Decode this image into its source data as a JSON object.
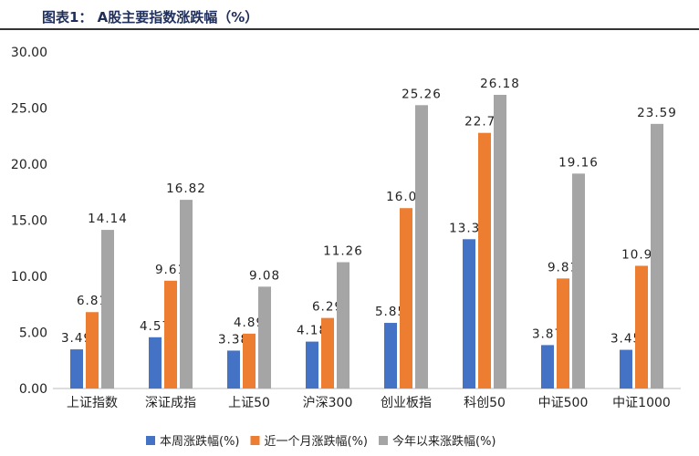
{
  "chart_data": {
    "type": "bar",
    "title": "图表1： A股主要指数涨跌幅（%）",
    "categories": [
      "上证指数",
      "深证成指",
      "上证50",
      "沪深300",
      "创业板指",
      "科创50",
      "中证500",
      "中证1000"
    ],
    "series": [
      {
        "name": "本周涨跌幅(%)",
        "color": "#4472c4",
        "values": [
          3.49,
          4.57,
          3.38,
          4.18,
          5.85,
          13.31,
          3.87,
          3.45
        ]
      },
      {
        "name": "近一个月涨跌幅(%)",
        "color": "#ed7d31",
        "values": [
          6.81,
          9.61,
          4.89,
          6.29,
          16.08,
          22.79,
          9.81,
          10.94
        ]
      },
      {
        "name": "今年以来涨跌幅(%)",
        "color": "#a5a5a5",
        "values": [
          14.14,
          16.82,
          9.08,
          11.26,
          25.26,
          26.18,
          19.16,
          23.59
        ]
      }
    ],
    "yticks": [
      "0.00",
      "5.00",
      "10.00",
      "15.00",
      "20.00",
      "25.00",
      "30.00"
    ],
    "ylim": [
      0,
      30
    ],
    "grid": false,
    "legend": "bottom"
  }
}
